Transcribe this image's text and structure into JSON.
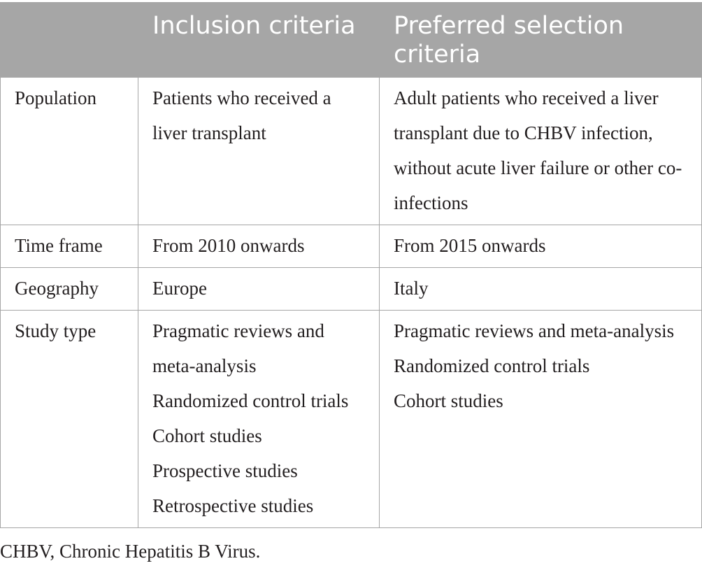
{
  "table": {
    "headers": [
      "",
      "Inclusion criteria",
      "Preferred selection criteria"
    ],
    "rows": [
      {
        "label": "Population",
        "inclusion": [
          "Patients who received a liver transplant"
        ],
        "preferred": [
          "Adult patients who received a liver transplant due to CHBV infection, without acute liver failure or other co-infections"
        ]
      },
      {
        "label": "Time frame",
        "inclusion": [
          "From 2010 onwards"
        ],
        "preferred": [
          "From 2015 onwards"
        ]
      },
      {
        "label": "Geography",
        "inclusion": [
          "Europe"
        ],
        "preferred": [
          "Italy"
        ]
      },
      {
        "label": "Study type",
        "inclusion": [
          "Pragmatic reviews and meta-analysis",
          "Randomized control trials",
          "Cohort studies",
          "Prospective studies",
          "Retrospective studies"
        ],
        "preferred": [
          "Pragmatic reviews and meta-analysis",
          "Randomized control trials",
          "Cohort studies"
        ]
      }
    ]
  },
  "footnote": "CHBV, Chronic Hepatitis B Virus.",
  "colors": {
    "header_background": "#a6a6a6",
    "header_text": "#ffffff",
    "border": "#a6a6a6",
    "body_text": "#231f20"
  }
}
